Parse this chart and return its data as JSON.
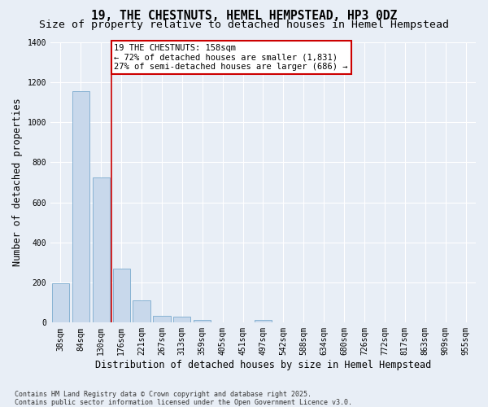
{
  "title": "19, THE CHESTNUTS, HEMEL HEMPSTEAD, HP3 0DZ",
  "subtitle": "Size of property relative to detached houses in Hemel Hempstead",
  "xlabel": "Distribution of detached houses by size in Hemel Hempstead",
  "ylabel": "Number of detached properties",
  "categories": [
    "38sqm",
    "84sqm",
    "130sqm",
    "176sqm",
    "221sqm",
    "267sqm",
    "313sqm",
    "359sqm",
    "405sqm",
    "451sqm",
    "497sqm",
    "542sqm",
    "588sqm",
    "634sqm",
    "680sqm",
    "726sqm",
    "772sqm",
    "817sqm",
    "863sqm",
    "909sqm",
    "955sqm"
  ],
  "values": [
    195,
    1155,
    725,
    270,
    110,
    35,
    30,
    15,
    0,
    0,
    15,
    0,
    0,
    0,
    0,
    0,
    0,
    0,
    0,
    0,
    0
  ],
  "bar_color": "#c8d8eb",
  "bar_edge_color": "#7aaace",
  "vline_color": "#cc0000",
  "annotation_text": "19 THE CHESTNUTS: 158sqm\n← 72% of detached houses are smaller (1,831)\n27% of semi-detached houses are larger (686) →",
  "annotation_box_edgecolor": "#cc0000",
  "ylim": [
    0,
    1400
  ],
  "yticks": [
    0,
    200,
    400,
    600,
    800,
    1000,
    1200,
    1400
  ],
  "footer": "Contains HM Land Registry data © Crown copyright and database right 2025.\nContains public sector information licensed under the Open Government Licence v3.0.",
  "background_color": "#e8eef6",
  "grid_color": "#ffffff",
  "title_fontsize": 10.5,
  "subtitle_fontsize": 9.5,
  "axis_label_fontsize": 8.5,
  "tick_fontsize": 7,
  "annotation_fontsize": 7.5,
  "footer_fontsize": 6
}
